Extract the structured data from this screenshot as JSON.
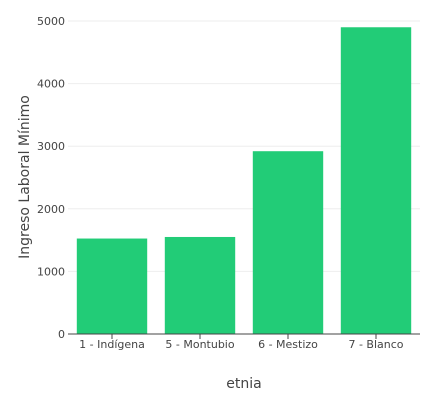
{
  "chart_data": {
    "type": "bar",
    "title": "",
    "xlabel": "etnia",
    "ylabel": "Ingreso Laboral Mínimo",
    "categories": [
      "1 - Indígena",
      "5 - Montubio",
      "6 - Mestizo",
      "7 - Blanco"
    ],
    "values": [
      1525,
      1550,
      2920,
      4900
    ],
    "ylim": [
      0,
      5000
    ],
    "yticks": [
      0,
      1000,
      2000,
      3000,
      4000,
      5000
    ],
    "grid": true,
    "bar_color": "#22cc77",
    "grid_color": "#eeeeee",
    "axis_color": "#444444"
  }
}
